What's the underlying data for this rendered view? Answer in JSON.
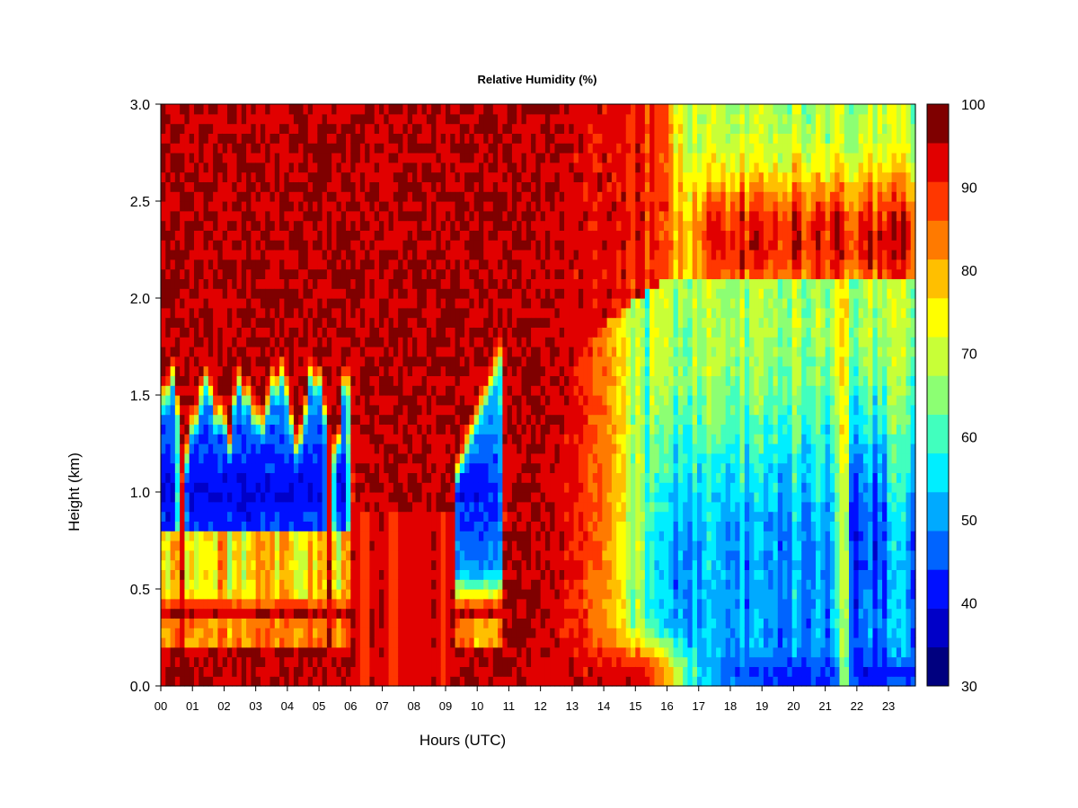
{
  "chart_data": {
    "type": "heatmap",
    "title": "Relative Humidity (%)",
    "xlabel": "Hours (UTC)",
    "ylabel": "Height (km)",
    "xlim": [
      0,
      23.85
    ],
    "ylim": [
      0.0,
      3.0
    ],
    "x_ticks": [
      "00",
      "01",
      "02",
      "03",
      "04",
      "05",
      "06",
      "07",
      "08",
      "09",
      "10",
      "11",
      "12",
      "13",
      "14",
      "15",
      "16",
      "17",
      "18",
      "19",
      "20",
      "21",
      "22",
      "23"
    ],
    "y_ticks": [
      "0.0",
      "0.5",
      "1.0",
      "1.5",
      "2.0",
      "2.5",
      "3.0"
    ],
    "colorbar": {
      "min": 30,
      "max": 100,
      "step": 5,
      "tick_labels": [
        "30",
        "40",
        "50",
        "60",
        "70",
        "80",
        "90",
        "100"
      ],
      "colors": [
        "#00007f",
        "#0000c8",
        "#0010ff",
        "#0064ff",
        "#00aaff",
        "#00eeff",
        "#41ffbe",
        "#8cff73",
        "#c8ff37",
        "#ffff00",
        "#ffbf00",
        "#ff7a00",
        "#ff3700",
        "#e10000",
        "#7f0000"
      ]
    },
    "grid_resolution": {
      "dx_hours": 0.15,
      "dz_km": 0.05
    },
    "regions_note_values": {
      "night_periods_low_rh_layer_km": [
        0.5,
        1.5
      ],
      "minimum_rh_at_1km_percent": 40,
      "saturated_hours": [
        "06-09",
        "11-15"
      ],
      "afternoon_boundary_layer_rh_percent": 50,
      "upper_cloud_layer_km": [
        2.0,
        3.0
      ]
    }
  }
}
